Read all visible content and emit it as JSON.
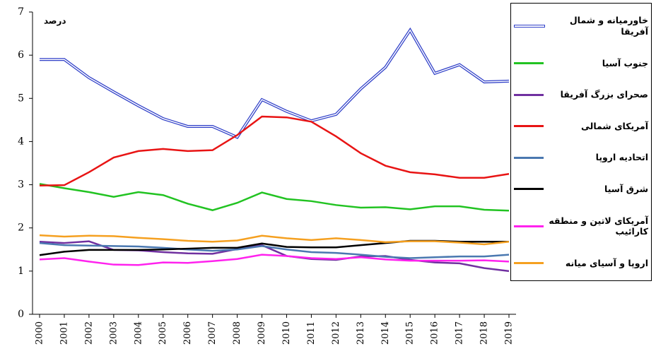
{
  "chart_data": {
    "type": "line",
    "y_label": "درصد",
    "categories": [
      "2000",
      "2001",
      "2002",
      "2003",
      "2004",
      "2005",
      "2006",
      "2007",
      "2008",
      "2009",
      "2010",
      "2011",
      "2012",
      "2013",
      "2014",
      "2015",
      "2016",
      "2017",
      "2018",
      "2019"
    ],
    "ylim": [
      0,
      7
    ],
    "yticks": [
      0,
      1,
      2,
      3,
      4,
      5,
      6,
      7
    ],
    "series": [
      {
        "name": "خاورمیانه و شمال آفریقا",
        "color": "#2f3fc8",
        "style": "double",
        "values": [
          5.9,
          5.9,
          5.48,
          5.15,
          4.83,
          4.53,
          4.35,
          4.35,
          4.1,
          4.97,
          4.7,
          4.48,
          4.63,
          5.22,
          5.72,
          6.58,
          5.58,
          5.78,
          5.38,
          5.4
        ]
      },
      {
        "name": "جنوب آسیا",
        "color": "#22c322",
        "values": [
          3.02,
          2.92,
          2.83,
          2.72,
          2.83,
          2.76,
          2.56,
          2.41,
          2.58,
          2.82,
          2.67,
          2.62,
          2.53,
          2.47,
          2.48,
          2.43,
          2.5,
          2.5,
          2.42,
          2.4
        ]
      },
      {
        "name": "صحرای بزرگ آفریقا",
        "color": "#7030a0",
        "values": [
          1.68,
          1.65,
          1.69,
          1.49,
          1.48,
          1.44,
          1.41,
          1.4,
          1.51,
          1.6,
          1.35,
          1.28,
          1.26,
          1.34,
          1.35,
          1.26,
          1.2,
          1.18,
          1.07,
          1.0
        ]
      },
      {
        "name": "آمریکای شمالی",
        "color": "#e81414",
        "values": [
          2.98,
          2.99,
          3.29,
          3.63,
          3.78,
          3.83,
          3.78,
          3.8,
          4.15,
          4.58,
          4.56,
          4.46,
          4.12,
          3.73,
          3.44,
          3.29,
          3.24,
          3.16,
          3.16,
          3.25
        ]
      },
      {
        "name": "اتحادیه اروپا",
        "color": "#4a78b0",
        "values": [
          1.65,
          1.6,
          1.59,
          1.58,
          1.57,
          1.54,
          1.5,
          1.47,
          1.5,
          1.58,
          1.5,
          1.44,
          1.42,
          1.38,
          1.33,
          1.3,
          1.32,
          1.34,
          1.34,
          1.38
        ]
      },
      {
        "name": "شرق  آسیا",
        "color": "#000000",
        "values": [
          1.37,
          1.45,
          1.49,
          1.49,
          1.49,
          1.5,
          1.52,
          1.54,
          1.54,
          1.64,
          1.56,
          1.55,
          1.55,
          1.6,
          1.65,
          1.7,
          1.7,
          1.68,
          1.68,
          1.68
        ]
      },
      {
        "name": "آمریکای لاتین و منطقه کارائیب",
        "color": "#ff22ee",
        "values": [
          1.27,
          1.3,
          1.22,
          1.15,
          1.14,
          1.2,
          1.19,
          1.23,
          1.28,
          1.38,
          1.35,
          1.3,
          1.28,
          1.32,
          1.27,
          1.24,
          1.24,
          1.24,
          1.25,
          1.22
        ]
      },
      {
        "name": "اروپا و آسیای میانه",
        "color": "#f5a020",
        "values": [
          1.83,
          1.8,
          1.82,
          1.81,
          1.77,
          1.74,
          1.7,
          1.68,
          1.71,
          1.82,
          1.76,
          1.72,
          1.76,
          1.72,
          1.67,
          1.69,
          1.69,
          1.66,
          1.62,
          1.68
        ]
      }
    ]
  }
}
